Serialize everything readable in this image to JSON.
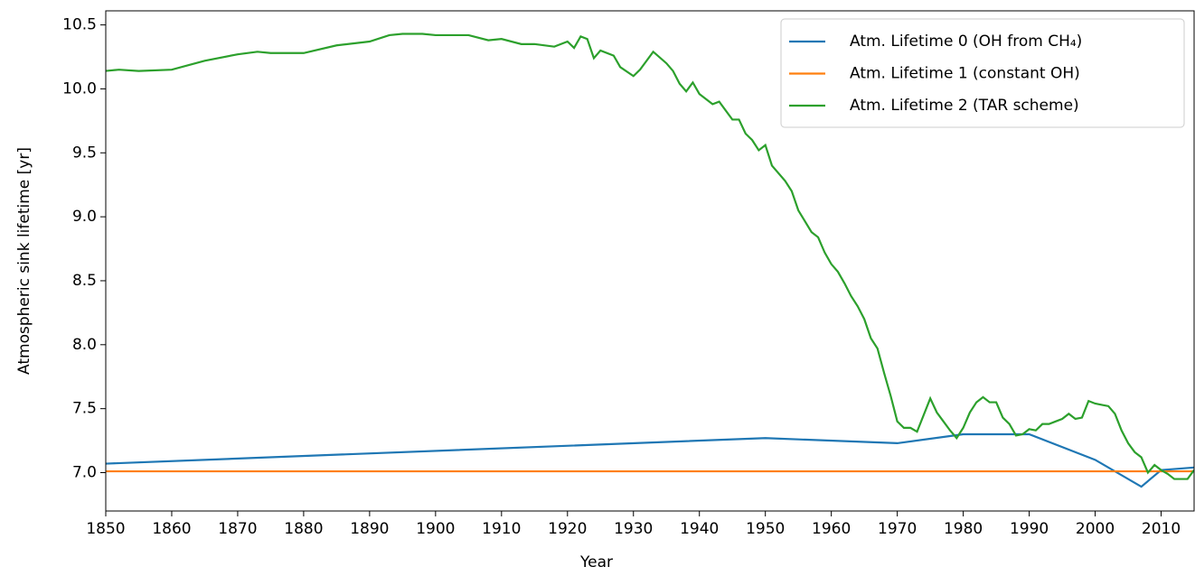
{
  "chart_data": {
    "type": "line",
    "x_label": "Year",
    "y_label": "Atmospheric sink lifetime [yr]",
    "xlim": [
      1850,
      2015
    ],
    "ylim": [
      6.7,
      10.61
    ],
    "xticks": [
      1850,
      1860,
      1870,
      1880,
      1890,
      1900,
      1910,
      1920,
      1930,
      1940,
      1950,
      1960,
      1970,
      1980,
      1990,
      2000,
      2010
    ],
    "yticks": [
      {
        "value": 7,
        "label": "7.0"
      },
      7.5,
      {
        "value": 8,
        "label": "8.0"
      },
      8.5,
      {
        "value": 9,
        "label": "9.0"
      },
      9.5,
      {
        "value": 10,
        "label": "10.0"
      },
      10.5
    ],
    "legend": "upper right",
    "series": [
      {
        "name": "Atm. Lifetime 0 (OH from CH₄)",
        "color": "#1f77b4",
        "x": [
          1850,
          1950,
          1970,
          1980,
          1990,
          2000,
          2007,
          2010,
          2015
        ],
        "values": [
          7.07,
          7.27,
          7.23,
          7.3,
          7.3,
          7.1,
          6.89,
          7.02,
          7.04
        ]
      },
      {
        "name": "Atm. Lifetime 1 (constant OH)",
        "color": "#ff7f0e",
        "x": [
          1850,
          2015
        ],
        "values": [
          7.01,
          7.01
        ]
      },
      {
        "name": "Atm. Lifetime 2 (TAR scheme)",
        "color": "#2ca02c",
        "x": [
          1850,
          1852,
          1855,
          1860,
          1865,
          1870,
          1873,
          1875,
          1880,
          1885,
          1890,
          1893,
          1895,
          1898,
          1900,
          1905,
          1908,
          1910,
          1913,
          1915,
          1918,
          1920,
          1921,
          1922,
          1923,
          1924,
          1925,
          1927,
          1928,
          1930,
          1931,
          1932,
          1933,
          1935,
          1936,
          1937,
          1938,
          1939,
          1940,
          1942,
          1943,
          1945,
          1946,
          1947,
          1948,
          1949,
          1950,
          1951,
          1953,
          1954,
          1955,
          1957,
          1958,
          1959,
          1960,
          1961,
          1962,
          1963,
          1964,
          1965,
          1966,
          1967,
          1968,
          1969,
          1970,
          1971,
          1972,
          1973,
          1974,
          1975,
          1976,
          1977,
          1978,
          1979,
          1980,
          1981,
          1982,
          1983,
          1984,
          1985,
          1986,
          1987,
          1988,
          1989,
          1990,
          1991,
          1992,
          1993,
          1994,
          1995,
          1996,
          1997,
          1998,
          1999,
          2000,
          2001,
          2002,
          2003,
          2004,
          2005,
          2006,
          2007,
          2008,
          2009,
          2010,
          2011,
          2012,
          2013,
          2014,
          2015
        ],
        "values": [
          10.14,
          10.15,
          10.14,
          10.15,
          10.22,
          10.27,
          10.29,
          10.28,
          10.28,
          10.34,
          10.37,
          10.42,
          10.43,
          10.43,
          10.42,
          10.42,
          10.38,
          10.39,
          10.35,
          10.35,
          10.33,
          10.37,
          10.32,
          10.41,
          10.39,
          10.24,
          10.3,
          10.26,
          10.17,
          10.1,
          10.15,
          10.22,
          10.29,
          10.2,
          10.14,
          10.04,
          9.98,
          10.05,
          9.96,
          9.88,
          9.9,
          9.76,
          9.76,
          9.65,
          9.6,
          9.52,
          9.56,
          9.4,
          9.28,
          9.2,
          9.05,
          8.88,
          8.84,
          8.72,
          8.63,
          8.57,
          8.48,
          8.38,
          8.3,
          8.2,
          8.05,
          7.97,
          7.78,
          7.6,
          7.4,
          7.35,
          7.35,
          7.32,
          7.45,
          7.58,
          7.47,
          7.4,
          7.33,
          7.27,
          7.35,
          7.47,
          7.55,
          7.59,
          7.55,
          7.55,
          7.43,
          7.38,
          7.29,
          7.3,
          7.34,
          7.33,
          7.38,
          7.38,
          7.4,
          7.42,
          7.46,
          7.42,
          7.43,
          7.56,
          7.54,
          7.53,
          7.52,
          7.46,
          7.33,
          7.23,
          7.16,
          7.12,
          7.0,
          7.06,
          7.02,
          6.99,
          6.95,
          6.95,
          6.95,
          7.02
        ]
      }
    ]
  }
}
